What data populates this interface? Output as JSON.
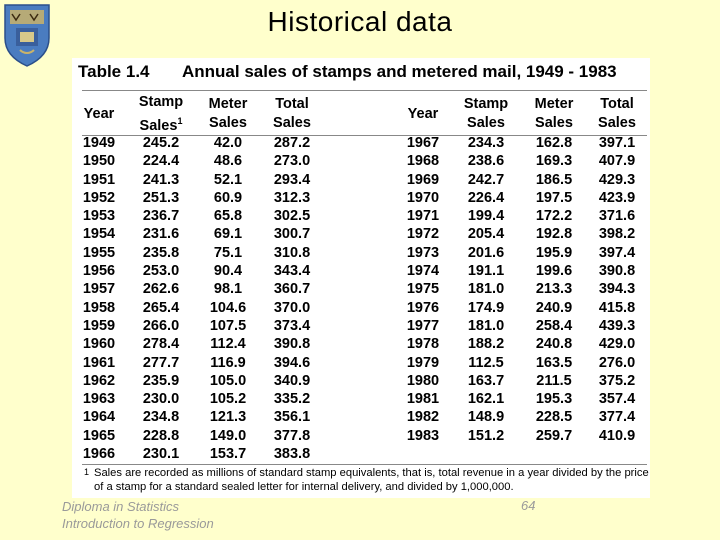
{
  "slide": {
    "title": "Historical data",
    "page_number": "64"
  },
  "footer": {
    "line1": "Diploma in Statistics",
    "line2": "Introduction to Regression"
  },
  "table": {
    "label": "Table 1.4",
    "description": "Annual sales of stamps and metered mail, 1949 - 1983",
    "headers": {
      "year": "Year",
      "stamp_line1": "Stamp",
      "stamp_line2": "Sales",
      "stamp_footnote_mark": "1",
      "meter_line1": "Meter",
      "meter_line2": "Sales",
      "total_line1": "Total",
      "total_line2": "Sales"
    },
    "left": {
      "years": [
        "1949",
        "1950",
        "1951",
        "1952",
        "1953",
        "1954",
        "1955",
        "1956",
        "1957",
        "1958",
        "1959",
        "1960",
        "1961",
        "1962",
        "1963",
        "1964",
        "1965",
        "1966"
      ],
      "stamp": [
        "245.2",
        "224.4",
        "241.3",
        "251.3",
        "236.7",
        "231.6",
        "235.8",
        "253.0",
        "262.6",
        "265.4",
        "266.0",
        "278.4",
        "277.7",
        "235.9",
        "230.0",
        "234.8",
        "228.8",
        "230.1"
      ],
      "meter": [
        "42.0",
        "48.6",
        "52.1",
        "60.9",
        "65.8",
        "69.1",
        "75.1",
        "90.4",
        "98.1",
        "104.6",
        "107.5",
        "112.4",
        "116.9",
        "105.0",
        "105.2",
        "121.3",
        "149.0",
        "153.7"
      ],
      "total": [
        "287.2",
        "273.0",
        "293.4",
        "312.3",
        "302.5",
        "300.7",
        "310.8",
        "343.4",
        "360.7",
        "370.0",
        "373.4",
        "390.8",
        "394.6",
        "340.9",
        "335.2",
        "356.1",
        "377.8",
        "383.8"
      ]
    },
    "right": {
      "years": [
        "1967",
        "1968",
        "1969",
        "1970",
        "1971",
        "1972",
        "1973",
        "1974",
        "1975",
        "1976",
        "1977",
        "1978",
        "1979",
        "1980",
        "1981",
        "1982",
        "1983"
      ],
      "stamp": [
        "234.3",
        "238.6",
        "242.7",
        "226.4",
        "199.4",
        "205.4",
        "201.6",
        "191.1",
        "181.0",
        "174.9",
        "181.0",
        "188.2",
        "112.5",
        "163.7",
        "162.1",
        "148.9",
        "151.2"
      ],
      "meter": [
        "162.8",
        "169.3",
        "186.5",
        "197.5",
        "172.2",
        "192.8",
        "195.9",
        "199.6",
        "213.3",
        "240.9",
        "258.4",
        "240.8",
        "163.5",
        "211.5",
        "195.3",
        "228.5",
        "259.7"
      ],
      "total": [
        "397.1",
        "407.9",
        "429.3",
        "423.9",
        "371.6",
        "398.2",
        "397.4",
        "390.8",
        "394.3",
        "415.8",
        "439.3",
        "429.0",
        "276.0",
        "375.2",
        "357.4",
        "377.4",
        "410.9"
      ]
    },
    "footnote_mark": "1",
    "footnote": "Sales are recorded as millions of standard stamp equivalents, that is, total revenue in a year divided by the price of a stamp for a standard sealed letter for internal delivery, and divided by 1,000,000."
  }
}
